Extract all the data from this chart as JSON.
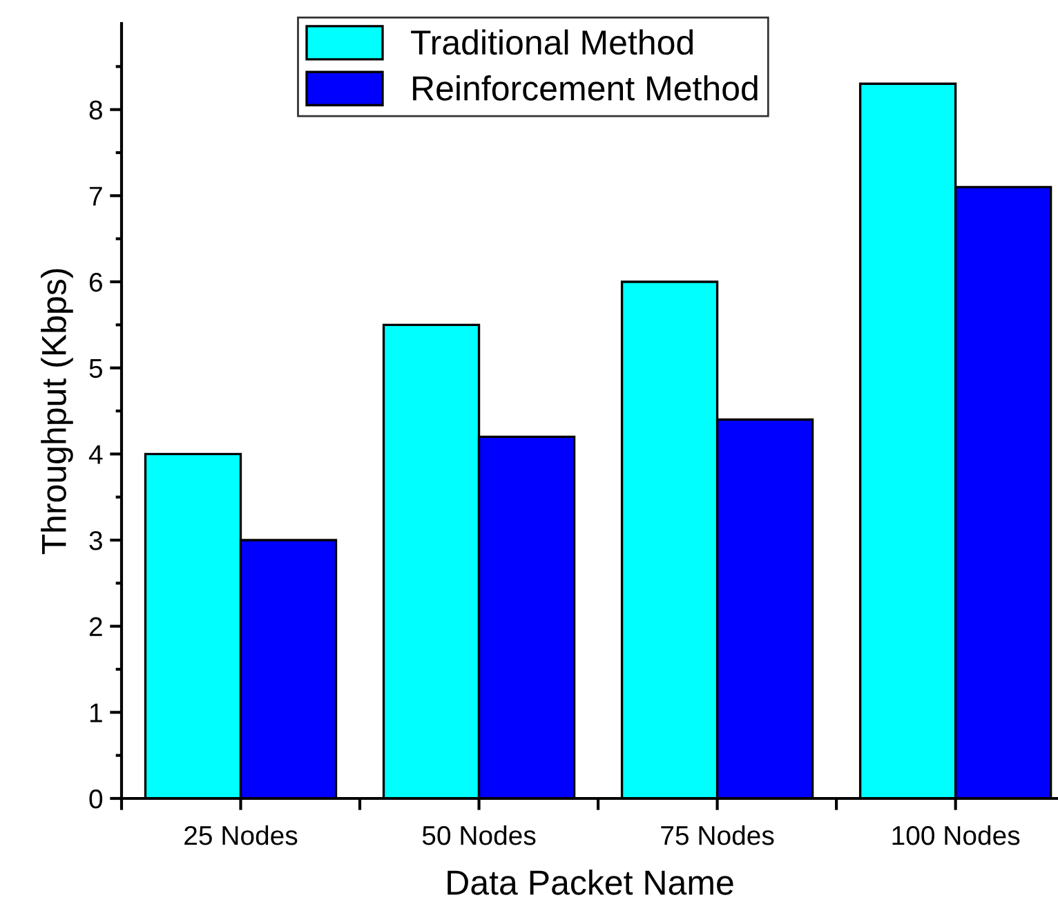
{
  "chart_data": {
    "type": "bar",
    "xlabel": "Data Packet Name",
    "ylabel": "Throughput (Kbps)",
    "categories": [
      "25 Nodes",
      "50 Nodes",
      "75 Nodes",
      "100 Nodes"
    ],
    "series": [
      {
        "name": "Traditional Method",
        "color": "#00ffff",
        "values": [
          4.0,
          5.5,
          6.0,
          8.3
        ]
      },
      {
        "name": "Reinforcement Method",
        "color": "#0000ff",
        "values": [
          3.0,
          4.2,
          4.4,
          7.1
        ]
      }
    ],
    "ylim": [
      0,
      9
    ],
    "yticks": [
      0,
      1,
      2,
      3,
      4,
      5,
      6,
      7,
      8
    ],
    "grid": false,
    "legend": "top left"
  }
}
